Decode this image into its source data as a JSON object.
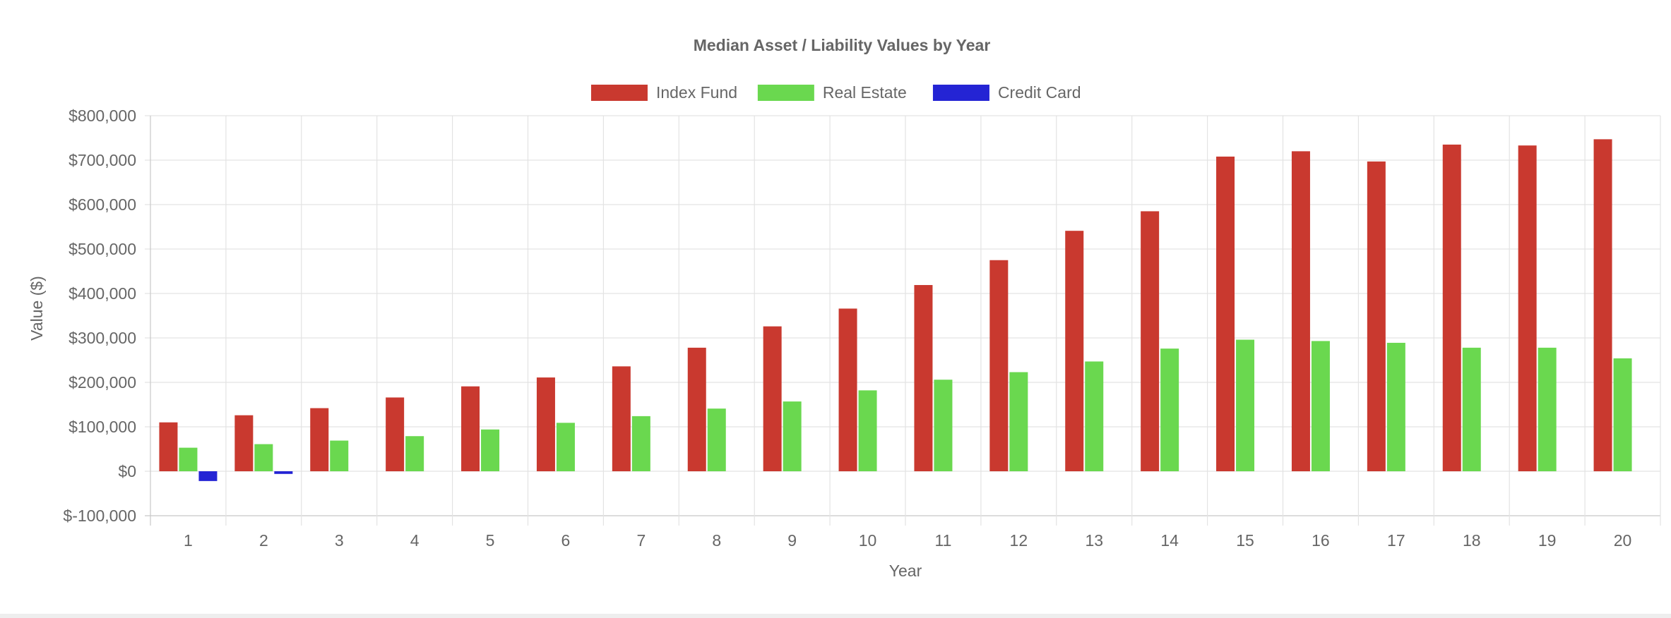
{
  "chart_data": {
    "type": "bar",
    "title": "Median Asset / Liability Values by Year",
    "xlabel": "Year",
    "ylabel": "Value ($)",
    "ylim": [
      -100000,
      800000
    ],
    "ytick_labels": [
      "$-100,000",
      "$0",
      "$100,000",
      "$200,000",
      "$300,000",
      "$400,000",
      "$500,000",
      "$600,000",
      "$700,000",
      "$800,000"
    ],
    "categories": [
      "1",
      "2",
      "3",
      "4",
      "5",
      "6",
      "7",
      "8",
      "9",
      "10",
      "11",
      "12",
      "13",
      "14",
      "15",
      "16",
      "17",
      "18",
      "19",
      "20"
    ],
    "legend_position": "top-center",
    "grid": true,
    "series": [
      {
        "name": "Index Fund",
        "color": "#c9392f",
        "values": [
          110000,
          126000,
          142000,
          166000,
          191000,
          211000,
          236000,
          278000,
          326000,
          366000,
          419000,
          475000,
          541000,
          585000,
          708000,
          720000,
          697000,
          735000,
          733000,
          747000
        ]
      },
      {
        "name": "Real Estate",
        "color": "#6ad84f",
        "values": [
          53000,
          61000,
          69000,
          79000,
          94000,
          109000,
          124000,
          141000,
          157000,
          182000,
          206000,
          223000,
          247000,
          276000,
          296000,
          293000,
          289000,
          278000,
          278000,
          254000
        ]
      },
      {
        "name": "Credit Card",
        "color": "#2424d4",
        "values": [
          -22000,
          -6000,
          0,
          0,
          0,
          0,
          0,
          0,
          0,
          0,
          0,
          0,
          0,
          0,
          0,
          0,
          0,
          0,
          0,
          0
        ]
      }
    ]
  }
}
